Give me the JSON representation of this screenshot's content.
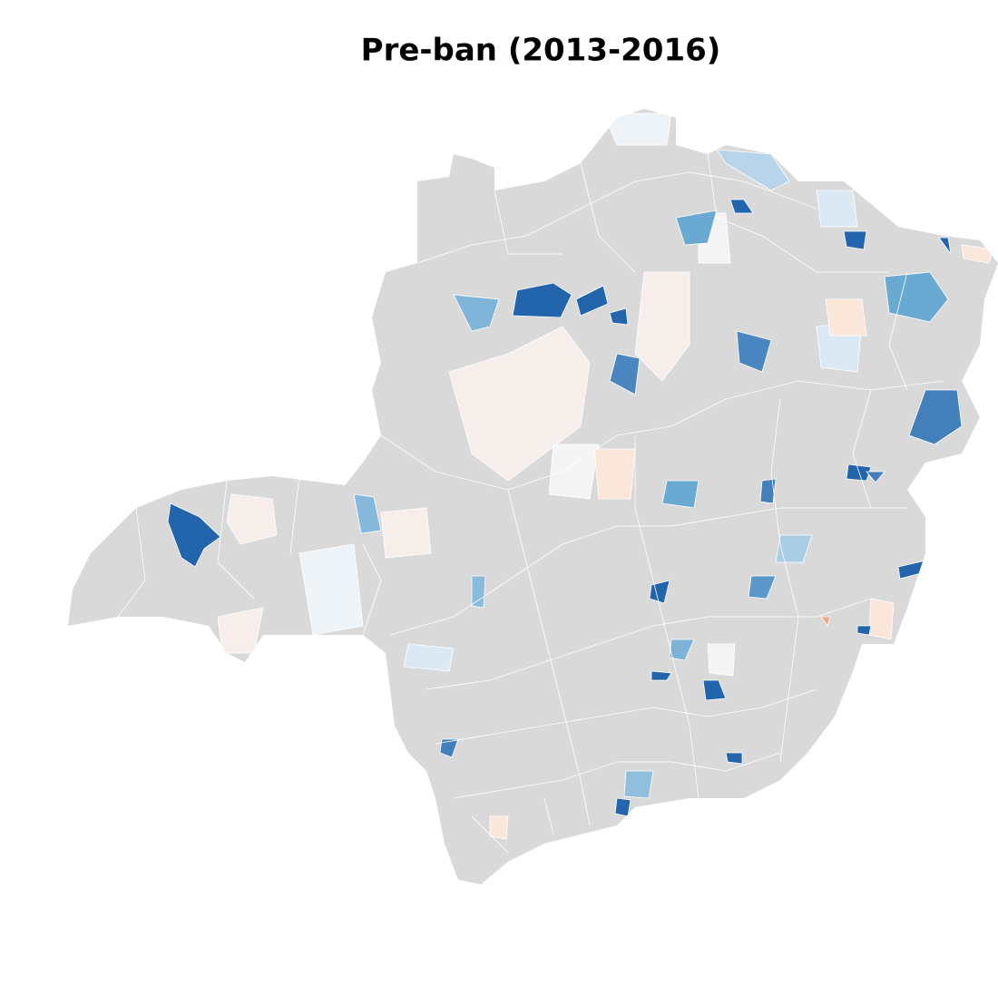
{
  "title": "Pre-ban (2013-2016)"
}
